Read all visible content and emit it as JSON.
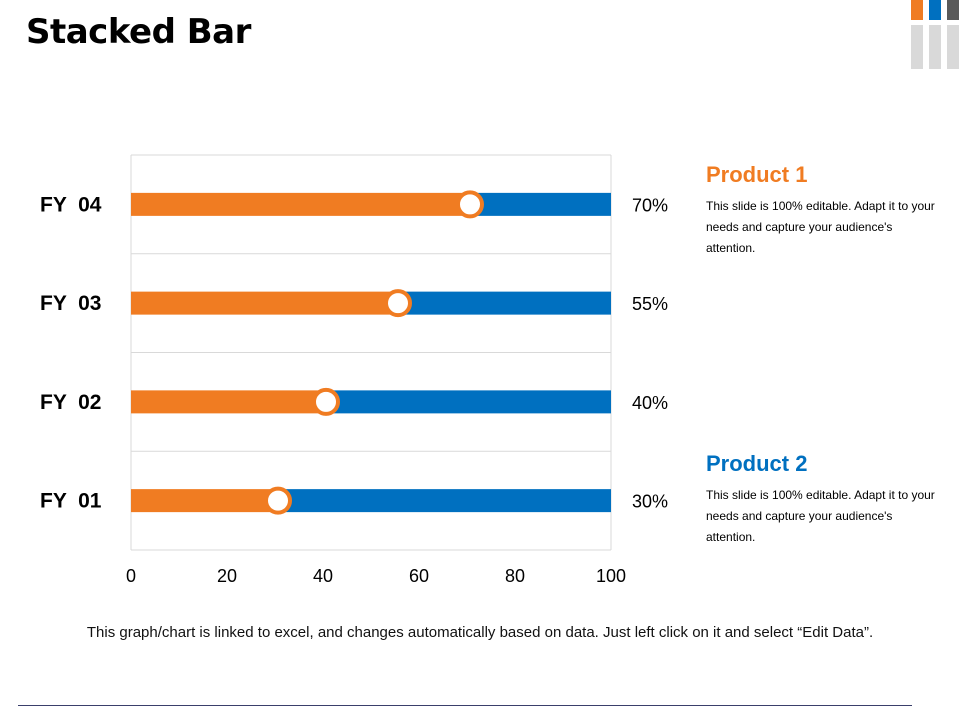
{
  "slide": {
    "title": "Stacked Bar",
    "footnote": "This graph/chart is linked to excel, and changes automatically based on data. Just left click on it and select “Edit Data”."
  },
  "legend": {
    "product1": {
      "title": "Product 1",
      "description": "This slide is 100% editable. Adapt it to your needs and capture your audience's attention."
    },
    "product2": {
      "title": "Product 2",
      "description": "This slide is 100% editable. Adapt it to your needs and capture your audience's attention."
    }
  },
  "colors": {
    "product1": "#F07C22",
    "product2": "#0070C0",
    "grid": "#D9D9D9",
    "deco_orange": "#F07C22",
    "deco_blue": "#0070C0",
    "deco_dark": "#5A5A5A",
    "deco_gray": "#D9D9D9"
  },
  "chart_data": {
    "type": "bar",
    "orientation": "horizontal",
    "stacked": true,
    "categories": [
      "FY  01",
      "FY  02",
      "FY  03",
      "FY  04"
    ],
    "series": [
      {
        "name": "Product 1",
        "values": [
          30,
          40,
          55,
          70
        ]
      },
      {
        "name": "Product 2",
        "values": [
          70,
          60,
          45,
          30
        ]
      }
    ],
    "data_labels": [
      "30%",
      "40%",
      "55%",
      "70%"
    ],
    "xlim": [
      0,
      100
    ],
    "xticks": [
      "0",
      "20",
      "40",
      "60",
      "80",
      "100"
    ],
    "xlabel": "",
    "ylabel": "",
    "grid": true,
    "legend": "right"
  }
}
